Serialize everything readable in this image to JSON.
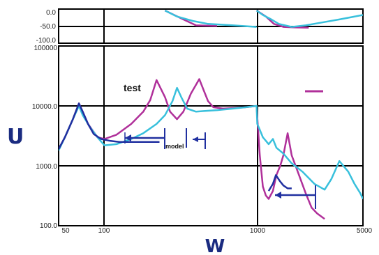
{
  "chart_data": [
    {
      "type": "line",
      "panel": "top",
      "title": "",
      "ytick_labels": [
        "0.0",
        "-50.0",
        "-100.0"
      ],
      "ylim": [
        -110,
        5
      ],
      "xscale": "log",
      "xlim": [
        50,
        5000
      ],
      "grid": true,
      "series": [
        {
          "color": "#b0309a",
          "x": [
            250,
            330,
            400,
            550
          ],
          "y": [
            0,
            -30,
            -50,
            -52
          ]
        },
        {
          "color": "#38c0dc",
          "x": [
            250,
            300,
            380,
            480,
            700,
            1000
          ],
          "y": [
            0,
            -20,
            -35,
            -45,
            -50,
            -55
          ]
        },
        {
          "color": "#b0309a",
          "x": [
            1000,
            1150,
            1300,
            1500,
            1800,
            2200
          ],
          "y": [
            0,
            -20,
            -45,
            -55,
            -57,
            -58
          ]
        },
        {
          "color": "#38c0dc",
          "x": [
            1000,
            1100,
            1250,
            1400,
            1700,
            2100,
            2700,
            3500,
            5000
          ],
          "y": [
            0,
            -15,
            -30,
            -45,
            -55,
            -50,
            -40,
            -30,
            -15
          ]
        }
      ]
    },
    {
      "type": "line",
      "panel": "main",
      "title": "",
      "xlabel": "W",
      "ylabel": "U",
      "xscale": "log",
      "yscale": "log",
      "xlim": [
        50,
        5000
      ],
      "ylim": [
        100,
        100000
      ],
      "xtick_labels": [
        "50",
        "100",
        "1000",
        "5000"
      ],
      "ytick_labels": [
        "100.0",
        "1000.0",
        "10000.0",
        "100000"
      ],
      "legend_position": "top-right",
      "legend_label": "test",
      "grid": true,
      "annotations": [
        "model"
      ],
      "series": [
        {
          "color": "#b0309a",
          "x": [
            50,
            55,
            62,
            68,
            72,
            78,
            90,
            100,
            120,
            150,
            180,
            200,
            220,
            250,
            270,
            300,
            330,
            370,
            420,
            450,
            480,
            520,
            600,
            700,
            850,
            1000,
            1005,
            1050,
            1100,
            1150,
            1200,
            1280,
            1350,
            1430,
            1500,
            1600,
            1700,
            1900,
            2100,
            2300,
            2500,
            2800
          ],
          "y": [
            1900,
            3000,
            6000,
            11000,
            8000,
            5000,
            3000,
            2800,
            3300,
            5000,
            8000,
            12500,
            27000,
            14000,
            8000,
            6000,
            8000,
            16000,
            28000,
            18000,
            12000,
            9500,
            9000,
            9200,
            9500,
            10000,
            8000,
            1500,
            450,
            320,
            280,
            380,
            700,
            1000,
            1500,
            3500,
            1500,
            700,
            350,
            200,
            160,
            130
          ]
        },
        {
          "color": "#38c0dc",
          "x": [
            50,
            55,
            62,
            68,
            72,
            80,
            90,
            100,
            120,
            150,
            180,
            220,
            250,
            280,
            300,
            320,
            350,
            400,
            450,
            550,
            700,
            850,
            1000,
            1010,
            1050,
            1100,
            1200,
            1280,
            1350,
            1500,
            1700,
            2000,
            2400,
            2800,
            3100,
            3500,
            4000,
            4400,
            4800,
            5000
          ],
          "y": [
            1800,
            3000,
            6000,
            10000,
            7000,
            4500,
            3000,
            2200,
            2300,
            2800,
            3500,
            5000,
            7000,
            12000,
            20000,
            14000,
            9000,
            8000,
            8200,
            8500,
            9000,
            9500,
            10000,
            5000,
            4000,
            3000,
            2300,
            2800,
            2000,
            1600,
            1100,
            800,
            500,
            400,
            600,
            1200,
            800,
            500,
            350,
            280
          ]
        },
        {
          "color": "#2030a0",
          "x": [
            50,
            55,
            62,
            68,
            72,
            78,
            85,
            95,
            110,
            125,
            140,
            160,
            180,
            200,
            215,
            230
          ],
          "y": [
            1900,
            3000,
            6000,
            11000,
            8000,
            5000,
            3400,
            2800,
            2600,
            2500,
            2500,
            2500,
            2500,
            2500,
            2500,
            2500
          ]
        },
        {
          "color": "#2030a0",
          "x": [
            1200,
            1280,
            1340,
            1420,
            1500,
            1600,
            1700
          ],
          "y": [
            380,
            500,
            700,
            560,
            470,
            420,
            420
          ]
        }
      ]
    }
  ]
}
